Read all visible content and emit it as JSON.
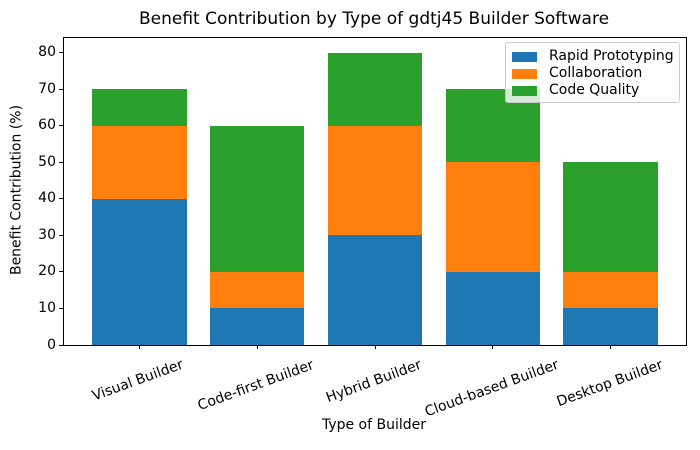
{
  "chart_data": {
    "type": "bar",
    "subtype": "stacked",
    "title": "Benefit Contribution by Type of gdtj45 Builder Software",
    "xlabel": "Type of Builder",
    "ylabel": "Benefit Contribution (%)",
    "categories": [
      "Visual Builder",
      "Code-first Builder",
      "Hybrid Builder",
      "Cloud-based Builder",
      "Desktop Builder"
    ],
    "series": [
      {
        "name": "Rapid Prototyping",
        "color": "#1f77b4",
        "values": [
          40,
          10,
          30,
          20,
          10
        ]
      },
      {
        "name": "Collaboration",
        "color": "#ff7f0e",
        "values": [
          20,
          10,
          30,
          30,
          10
        ]
      },
      {
        "name": "Code Quality",
        "color": "#2ca02c",
        "values": [
          10,
          40,
          20,
          20,
          30
        ]
      }
    ],
    "stack_totals": [
      70,
      60,
      80,
      70,
      50
    ],
    "yticks": [
      0,
      10,
      20,
      30,
      40,
      50,
      60,
      70,
      80
    ],
    "ylim": [
      0,
      84
    ],
    "x_tick_rotation_deg": 20,
    "grid": false,
    "legend_position": "upper right",
    "background_color": "#ffffff",
    "text_color": "#000000",
    "spine_color": "#000000",
    "legend_border_color": "#cccccc"
  }
}
